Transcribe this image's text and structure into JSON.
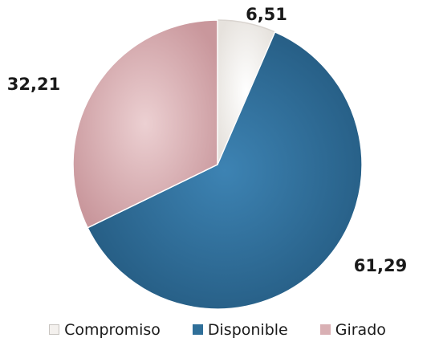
{
  "colors": {
    "compromiso": "#f4f1ee",
    "disponible": "#2f6f99",
    "girado": "#d9b0b4"
  },
  "chart_data": {
    "type": "pie",
    "title": "",
    "categories": [
      "Compromiso",
      "Disponible",
      "Girado"
    ],
    "values": [
      6.51,
      61.29,
      32.21
    ],
    "value_labels": [
      "6,51",
      "61,29",
      "32,21"
    ],
    "start_angle_deg": 0,
    "direction": "clockwise",
    "legend_position": "bottom"
  },
  "legend": {
    "items": [
      {
        "label": "Compromiso",
        "color_key": "compromiso"
      },
      {
        "label": "Disponible",
        "color_key": "disponible"
      },
      {
        "label": "Girado",
        "color_key": "girado"
      }
    ]
  }
}
